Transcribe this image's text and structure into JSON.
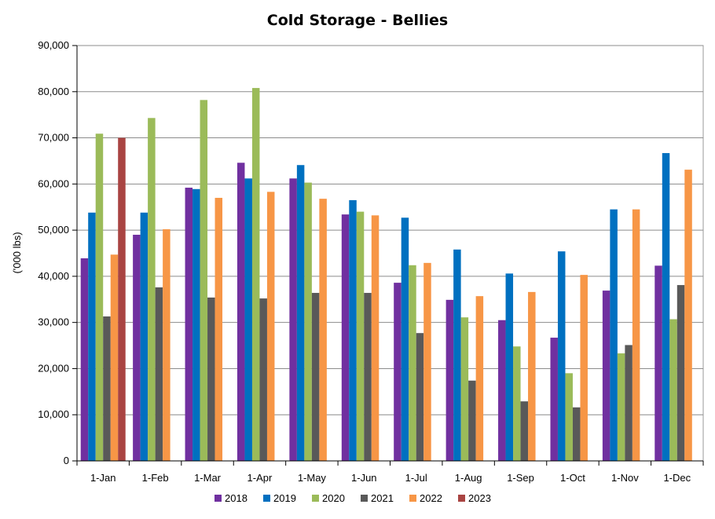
{
  "chart_data": {
    "type": "bar",
    "title": "Cold Storage - Bellies",
    "xlabel": "",
    "ylabel": "('000 lbs)",
    "ylim": [
      0,
      90000
    ],
    "y_ticks": [
      "0",
      "10,000",
      "20,000",
      "30,000",
      "40,000",
      "50,000",
      "60,000",
      "70,000",
      "80,000",
      "90,000"
    ],
    "grid": true,
    "legend_position": "bottom",
    "categories": [
      "1-Jan",
      "1-Feb",
      "1-Mar",
      "1-Apr",
      "1-May",
      "1-Jun",
      "1-Jul",
      "1-Aug",
      "1-Sep",
      "1-Oct",
      "1-Nov",
      "1-Dec"
    ],
    "series": [
      {
        "name": "2018",
        "color": "#7030A0",
        "values": [
          43900,
          49000,
          59200,
          64600,
          61200,
          53400,
          38600,
          34900,
          30500,
          26700,
          36900,
          42300
        ]
      },
      {
        "name": "2019",
        "color": "#0070C0",
        "values": [
          53800,
          53800,
          58900,
          61200,
          64100,
          56500,
          52700,
          45800,
          40600,
          45400,
          54500,
          66700
        ]
      },
      {
        "name": "2020",
        "color": "#9BBB59",
        "values": [
          70900,
          74300,
          78200,
          80800,
          60300,
          54000,
          42400,
          31100,
          24800,
          19000,
          23300,
          30700
        ]
      },
      {
        "name": "2021",
        "color": "#595959",
        "values": [
          31300,
          37600,
          35400,
          35200,
          36400,
          36400,
          27700,
          17400,
          12900,
          11600,
          25100,
          38100
        ]
      },
      {
        "name": "2022",
        "color": "#F79646",
        "values": [
          44700,
          50200,
          57000,
          58300,
          56800,
          53200,
          42900,
          35700,
          36600,
          40300,
          54500,
          63100
        ]
      },
      {
        "name": "2023",
        "color": "#A94442",
        "values": [
          70000,
          null,
          null,
          null,
          null,
          null,
          null,
          null,
          null,
          null,
          null,
          null
        ]
      }
    ]
  }
}
